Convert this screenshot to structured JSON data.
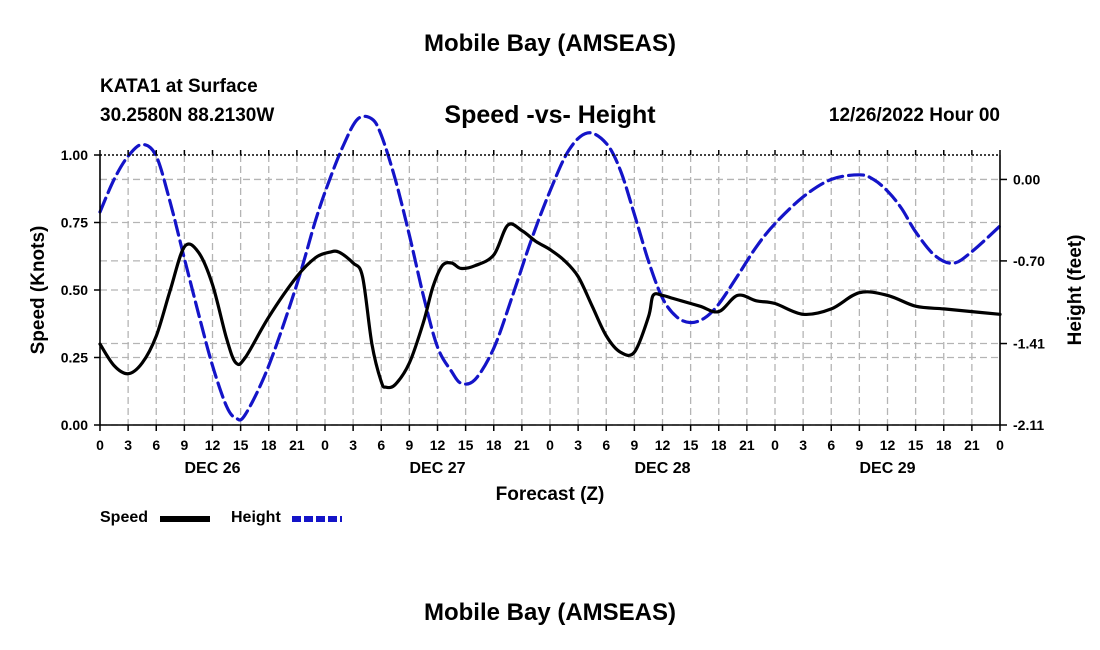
{
  "header": {
    "top_title": "Mobile Bay (AMSEAS)",
    "station": "KATA1 at Surface",
    "coords": "30.2580N  88.2130W",
    "run_time": "12/26/2022 Hour 00",
    "bottom_title": "Mobile Bay (AMSEAS)"
  },
  "chart_data": {
    "type": "line",
    "title": "Speed -vs- Height",
    "xlabel": "Forecast (Z)",
    "ylabel_left": "Speed (Knots)",
    "ylabel_right": "Height (feet)",
    "x_range_hours": [
      0,
      96
    ],
    "x_tick_labels": [
      "0",
      "3",
      "6",
      "9",
      "12",
      "15",
      "18",
      "21",
      "0",
      "3",
      "6",
      "9",
      "12",
      "15",
      "18",
      "21",
      "0",
      "3",
      "6",
      "9",
      "12",
      "15",
      "18",
      "21",
      "0",
      "3",
      "6",
      "9",
      "12",
      "15",
      "18",
      "21",
      "0"
    ],
    "date_labels": [
      {
        "label": "DEC 26",
        "hour": 12
      },
      {
        "label": "DEC 27",
        "hour": 36
      },
      {
        "label": "DEC 28",
        "hour": 60
      },
      {
        "label": "DEC 29",
        "hour": 84
      }
    ],
    "left_axis": {
      "ylim": [
        0,
        1.0
      ],
      "ticks": [
        "0.00",
        "0.25",
        "0.50",
        "0.75",
        "1.00"
      ],
      "tick_values": [
        0,
        0.25,
        0.5,
        0.75,
        1.0
      ]
    },
    "right_axis": {
      "ylim": [
        -2.11,
        0.21
      ],
      "ticks": [
        "0.00",
        "-0.70",
        "-1.41",
        "-2.11"
      ],
      "tick_values": [
        0.0,
        -0.7,
        -1.41,
        -2.11
      ]
    },
    "grid": true,
    "series": [
      {
        "name": "Speed",
        "axis": "left",
        "color": "#000000",
        "dash": "solid",
        "x": [
          0,
          1.5,
          3,
          4.5,
          6,
          7.5,
          9,
          10.5,
          12,
          13.5,
          14.5,
          15.5,
          18,
          21,
          23,
          24.5,
          25.5,
          27,
          28,
          29,
          30,
          30.5,
          31.5,
          33,
          34.5,
          35.5,
          36.5,
          37.5,
          38.5,
          40,
          42,
          43.5,
          45,
          46.5,
          48,
          49.5,
          51,
          52.5,
          54,
          55.5,
          57,
          58.5,
          59,
          60,
          61,
          62,
          64,
          66,
          68,
          70,
          72,
          75,
          78,
          81,
          84,
          87,
          90,
          93,
          96
        ],
        "values": [
          0.3,
          0.22,
          0.19,
          0.23,
          0.33,
          0.5,
          0.66,
          0.64,
          0.52,
          0.32,
          0.23,
          0.25,
          0.4,
          0.55,
          0.62,
          0.64,
          0.64,
          0.6,
          0.55,
          0.3,
          0.16,
          0.14,
          0.15,
          0.23,
          0.38,
          0.51,
          0.59,
          0.6,
          0.58,
          0.59,
          0.63,
          0.74,
          0.72,
          0.68,
          0.65,
          0.61,
          0.55,
          0.44,
          0.33,
          0.27,
          0.27,
          0.4,
          0.48,
          0.48,
          0.47,
          0.46,
          0.44,
          0.42,
          0.48,
          0.46,
          0.45,
          0.41,
          0.43,
          0.49,
          0.48,
          0.44,
          0.43,
          0.42,
          0.41
        ]
      },
      {
        "name": "Height",
        "axis": "right",
        "color": "#1414c8",
        "dash": "dashed",
        "x": [
          0,
          1.5,
          3,
          4.5,
          6,
          7.5,
          9,
          10.5,
          12,
          13.5,
          14.5,
          15.5,
          18,
          21,
          23,
          24.5,
          26,
          27.5,
          29,
          30,
          31.5,
          33,
          34.5,
          36,
          37.5,
          38.5,
          40,
          42,
          44,
          46,
          48,
          50,
          52,
          54,
          55.5,
          57,
          58.5,
          60,
          61.5,
          63,
          64.5,
          66,
          68,
          70,
          72,
          75,
          78,
          81,
          82.5,
          84,
          85.5,
          87,
          89,
          91,
          93,
          96
        ],
        "values": [
          -0.28,
          0.0,
          0.2,
          0.3,
          0.2,
          -0.2,
          -0.68,
          -1.15,
          -1.6,
          -1.95,
          -2.05,
          -2.02,
          -1.6,
          -0.9,
          -0.35,
          0.0,
          0.3,
          0.52,
          0.52,
          0.38,
          0.0,
          -0.48,
          -1.0,
          -1.44,
          -1.65,
          -1.75,
          -1.72,
          -1.45,
          -1.0,
          -0.52,
          -0.1,
          0.25,
          0.4,
          0.31,
          0.08,
          -0.3,
          -0.7,
          -1.02,
          -1.18,
          -1.23,
          -1.19,
          -1.07,
          -0.83,
          -0.58,
          -0.38,
          -0.15,
          0.0,
          0.04,
          0.0,
          -0.1,
          -0.25,
          -0.45,
          -0.65,
          -0.72,
          -0.62,
          -0.4
        ]
      }
    ],
    "legend_position": "bottom-left"
  }
}
